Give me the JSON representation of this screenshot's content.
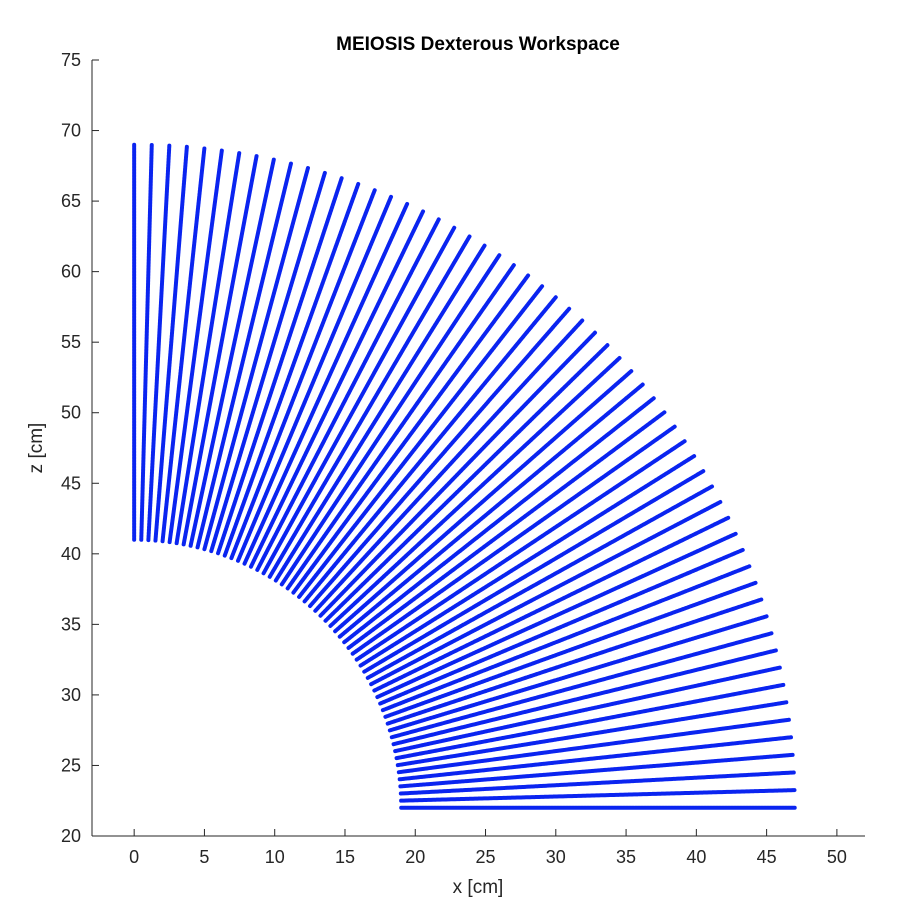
{
  "chart_data": {
    "type": "scatter",
    "title": "MEIOSIS Dexterous Workspace",
    "xlabel": "x [cm]",
    "ylabel": "z [cm]",
    "xlim": [
      -3,
      52
    ],
    "ylim": [
      20,
      75
    ],
    "xticks": [
      0,
      5,
      10,
      15,
      20,
      25,
      30,
      35,
      40,
      45,
      50
    ],
    "yticks": [
      20,
      25,
      30,
      35,
      40,
      45,
      50,
      55,
      60,
      65,
      70,
      75
    ],
    "grid": false,
    "legend": "none",
    "marker_color": "#0a24f0",
    "region": {
      "center": [
        0,
        22
      ],
      "inner_radius": 19,
      "outer_radius": 47,
      "angle_start_deg": 0,
      "angle_end_deg": 90,
      "ray_count": 60
    }
  }
}
